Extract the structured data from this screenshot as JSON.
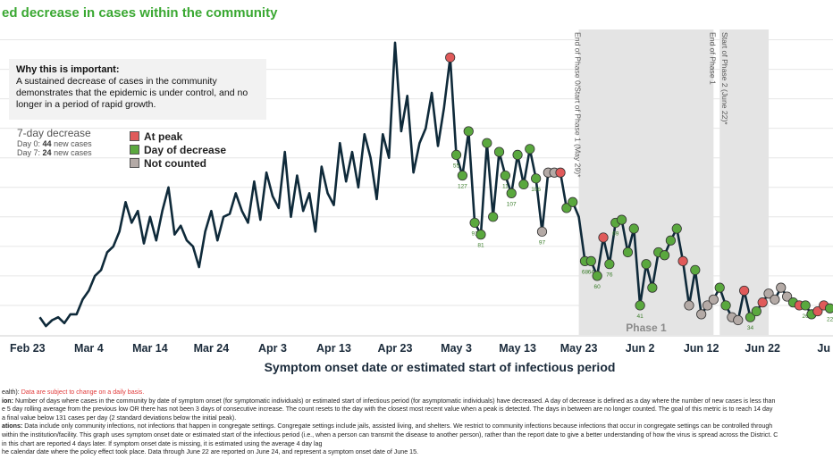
{
  "title": "ed decrease in cases within the community",
  "why": {
    "heading": "Why this is important:",
    "body": "A sustained decrease of cases in the community demonstrates that the epidemic is under control, and no longer in a period of rapid growth."
  },
  "seven_day": {
    "title": "7-day decrease",
    "day0_label": "Day 0:",
    "day0_value": "44",
    "day0_suffix": "new cases",
    "day7_label": "Day 7:",
    "day7_value": "24",
    "day7_suffix": "new cases"
  },
  "colors": {
    "line": "#0f2a3a",
    "peak": "#e05a5a",
    "decrease": "#5aa83e",
    "not_counted": "#b4aaa6",
    "phase_band": "#e4e4e4"
  },
  "chart_data": {
    "type": "line",
    "xlabel": "Symptom onset date or estimated start of infectious period",
    "ylabel": "",
    "x_tick_labels": [
      "Feb 23",
      "Mar 4",
      "Mar 14",
      "Mar 24",
      "Apr 3",
      "Apr 13",
      "Apr 23",
      "May 3",
      "May 13",
      "May 23",
      "Jun 2",
      "Jun 12",
      "Jun 22",
      "Ju"
    ],
    "x_tick_days": [
      0,
      10,
      20,
      30,
      40,
      50,
      60,
      70,
      80,
      90,
      100,
      110,
      120,
      130
    ],
    "x_range_days": [
      -4.5,
      131.5
    ],
    "y_range": [
      0,
      105
    ],
    "grid": true,
    "legend": {
      "position": "left",
      "entries": [
        "At peak",
        "Day of decrease",
        "Not counted"
      ]
    },
    "phases": [
      {
        "label": "Phase 1",
        "start_day": 90,
        "end_day": 112
      },
      {
        "label": "",
        "start_day": 113,
        "end_day": 121
      }
    ],
    "phase_annotations": [
      {
        "text": "End of Phase 0/Start of Phase 1 (May 29)*",
        "day": 90
      },
      {
        "text": "End of Phase 1",
        "day": 112
      },
      {
        "text": "Start of Phase 2 (June 22)*",
        "day": 114
      }
    ],
    "series": [
      {
        "values": [
          [
            2,
            6
          ],
          [
            3,
            3
          ],
          [
            4,
            5
          ],
          [
            5,
            6
          ],
          [
            6,
            4
          ],
          [
            7,
            7
          ],
          [
            8,
            7
          ],
          [
            9,
            12
          ],
          [
            10,
            15
          ],
          [
            11,
            20
          ],
          [
            12,
            22
          ],
          [
            13,
            28
          ],
          [
            14,
            30
          ],
          [
            15,
            35
          ],
          [
            16,
            45
          ],
          [
            17,
            38
          ],
          [
            18,
            42
          ],
          [
            19,
            31
          ],
          [
            20,
            40
          ],
          [
            21,
            32
          ],
          [
            22,
            42
          ],
          [
            23,
            50
          ],
          [
            24,
            34
          ],
          [
            25,
            37
          ],
          [
            26,
            32
          ],
          [
            27,
            30
          ],
          [
            28,
            23
          ],
          [
            29,
            35
          ],
          [
            30,
            42
          ],
          [
            31,
            32
          ],
          [
            32,
            40
          ],
          [
            33,
            41
          ],
          [
            34,
            48
          ],
          [
            35,
            42
          ],
          [
            36,
            38
          ],
          [
            37,
            52
          ],
          [
            38,
            39
          ],
          [
            39,
            55
          ],
          [
            40,
            47
          ],
          [
            41,
            43
          ],
          [
            42,
            62
          ],
          [
            43,
            40
          ],
          [
            44,
            54
          ],
          [
            45,
            42
          ],
          [
            46,
            48
          ],
          [
            47,
            35
          ],
          [
            48,
            57
          ],
          [
            49,
            48
          ],
          [
            50,
            44
          ],
          [
            51,
            65
          ],
          [
            52,
            52
          ],
          [
            53,
            62
          ],
          [
            54,
            50
          ],
          [
            55,
            68
          ],
          [
            56,
            60
          ],
          [
            57,
            46
          ],
          [
            58,
            68
          ],
          [
            59,
            60
          ],
          [
            60,
            99
          ],
          [
            61,
            69
          ],
          [
            62,
            81
          ],
          [
            63,
            55
          ],
          [
            64,
            65
          ],
          [
            65,
            70
          ],
          [
            66,
            82
          ],
          [
            67,
            64
          ],
          [
            68,
            77
          ],
          [
            69,
            94
          ],
          [
            70,
            61
          ],
          [
            71,
            54
          ],
          [
            72,
            69
          ],
          [
            73,
            38
          ],
          [
            74,
            34
          ],
          [
            75,
            65
          ],
          [
            76,
            40
          ],
          [
            77,
            62
          ],
          [
            78,
            54
          ],
          [
            79,
            48
          ],
          [
            80,
            61
          ],
          [
            81,
            51
          ],
          [
            82,
            63
          ],
          [
            83,
            53
          ],
          [
            84,
            35
          ],
          [
            85,
            55
          ],
          [
            86,
            55
          ],
          [
            87,
            55
          ],
          [
            88,
            43
          ],
          [
            89,
            45
          ],
          [
            90,
            40
          ],
          [
            91,
            25
          ],
          [
            92,
            25
          ],
          [
            93,
            20
          ],
          [
            94,
            33
          ],
          [
            95,
            24
          ],
          [
            96,
            38
          ],
          [
            97,
            39
          ],
          [
            98,
            28
          ],
          [
            99,
            36
          ],
          [
            100,
            10
          ],
          [
            101,
            24
          ],
          [
            102,
            16
          ],
          [
            103,
            28
          ],
          [
            104,
            27
          ],
          [
            105,
            32
          ],
          [
            106,
            36
          ],
          [
            107,
            25
          ],
          [
            108,
            10
          ],
          [
            109,
            22
          ],
          [
            110,
            7
          ],
          [
            111,
            10
          ],
          [
            112,
            12
          ],
          [
            113,
            16
          ],
          [
            114,
            10
          ],
          [
            115,
            6
          ],
          [
            116,
            5
          ],
          [
            117,
            15
          ],
          [
            118,
            6
          ],
          [
            119,
            8
          ],
          [
            120,
            11
          ],
          [
            121,
            14
          ],
          [
            122,
            12
          ],
          [
            123,
            16
          ],
          [
            124,
            13
          ],
          [
            125,
            11
          ],
          [
            126,
            10
          ],
          [
            127,
            10
          ],
          [
            128,
            7
          ],
          [
            129,
            8
          ],
          [
            130,
            10
          ],
          [
            131,
            9
          ]
        ]
      }
    ],
    "markers": [
      {
        "day": 69,
        "value": 94,
        "status": "peak",
        "label": ""
      },
      {
        "day": 70,
        "value": 61,
        "status": "decrease",
        "label": "55"
      },
      {
        "day": 71,
        "value": 54,
        "status": "decrease",
        "label": "127"
      },
      {
        "day": 72,
        "value": 69,
        "status": "decrease",
        "label": ""
      },
      {
        "day": 73,
        "value": 38,
        "status": "decrease",
        "label": "91"
      },
      {
        "day": 74,
        "value": 34,
        "status": "decrease",
        "label": "81"
      },
      {
        "day": 75,
        "value": 65,
        "status": "decrease",
        "label": ""
      },
      {
        "day": 76,
        "value": 40,
        "status": "decrease",
        "label": ""
      },
      {
        "day": 77,
        "value": 62,
        "status": "decrease",
        "label": ""
      },
      {
        "day": 78,
        "value": 54,
        "status": "decrease",
        "label": "11"
      },
      {
        "day": 79,
        "value": 48,
        "status": "decrease",
        "label": "107"
      },
      {
        "day": 80,
        "value": 61,
        "status": "decrease",
        "label": ""
      },
      {
        "day": 81,
        "value": 51,
        "status": "decrease",
        "label": ""
      },
      {
        "day": 82,
        "value": 63,
        "status": "decrease",
        "label": ""
      },
      {
        "day": 83,
        "value": 53,
        "status": "decrease",
        "label": "106"
      },
      {
        "day": 84,
        "value": 35,
        "status": "not_counted",
        "label": "97"
      },
      {
        "day": 85,
        "value": 55,
        "status": "not_counted",
        "label": ""
      },
      {
        "day": 86,
        "value": 55,
        "status": "not_counted",
        "label": ""
      },
      {
        "day": 87,
        "value": 55,
        "status": "peak",
        "label": ""
      },
      {
        "day": 88,
        "value": 43,
        "status": "decrease",
        "label": ""
      },
      {
        "day": 89,
        "value": 45,
        "status": "decrease",
        "label": ""
      },
      {
        "day": 91,
        "value": 25,
        "status": "decrease",
        "label": "68"
      },
      {
        "day": 92,
        "value": 25,
        "status": "decrease",
        "label": "64"
      },
      {
        "day": 93,
        "value": 20,
        "status": "decrease",
        "label": "60"
      },
      {
        "day": 94,
        "value": 33,
        "status": "peak",
        "label": ""
      },
      {
        "day": 95,
        "value": 24,
        "status": "decrease",
        "label": "76"
      },
      {
        "day": 96,
        "value": 38,
        "status": "decrease",
        "label": "69"
      },
      {
        "day": 97,
        "value": 39,
        "status": "decrease",
        "label": ""
      },
      {
        "day": 98,
        "value": 28,
        "status": "decrease",
        "label": ""
      },
      {
        "day": 99,
        "value": 36,
        "status": "decrease",
        "label": ""
      },
      {
        "day": 100,
        "value": 10,
        "status": "decrease",
        "label": "41"
      },
      {
        "day": 101,
        "value": 24,
        "status": "decrease",
        "label": ""
      },
      {
        "day": 102,
        "value": 16,
        "status": "decrease",
        "label": ""
      },
      {
        "day": 103,
        "value": 28,
        "status": "decrease",
        "label": ""
      },
      {
        "day": 104,
        "value": 27,
        "status": "decrease",
        "label": ""
      },
      {
        "day": 105,
        "value": 32,
        "status": "decrease",
        "label": ""
      },
      {
        "day": 106,
        "value": 36,
        "status": "decrease",
        "label": ""
      },
      {
        "day": 107,
        "value": 25,
        "status": "peak",
        "label": ""
      },
      {
        "day": 108,
        "value": 10,
        "status": "not_counted",
        "label": ""
      },
      {
        "day": 109,
        "value": 22,
        "status": "decrease",
        "label": ""
      },
      {
        "day": 110,
        "value": 7,
        "status": "not_counted",
        "label": ""
      },
      {
        "day": 111,
        "value": 10,
        "status": "not_counted",
        "label": ""
      },
      {
        "day": 112,
        "value": 12,
        "status": "not_counted",
        "label": ""
      },
      {
        "day": 113,
        "value": 16,
        "status": "decrease",
        "label": ""
      },
      {
        "day": 114,
        "value": 10,
        "status": "decrease",
        "label": ""
      },
      {
        "day": 115,
        "value": 6,
        "status": "not_counted",
        "label": ""
      },
      {
        "day": 116,
        "value": 5,
        "status": "not_counted",
        "label": ""
      },
      {
        "day": 117,
        "value": 15,
        "status": "peak",
        "label": ""
      },
      {
        "day": 118,
        "value": 6,
        "status": "decrease",
        "label": "34"
      },
      {
        "day": 119,
        "value": 8,
        "status": "decrease",
        "label": ""
      },
      {
        "day": 120,
        "value": 11,
        "status": "peak",
        "label": ""
      },
      {
        "day": 121,
        "value": 14,
        "status": "not_counted",
        "label": ""
      },
      {
        "day": 122,
        "value": 12,
        "status": "not_counted",
        "label": ""
      },
      {
        "day": 123,
        "value": 16,
        "status": "not_counted",
        "label": ""
      },
      {
        "day": 124,
        "value": 13,
        "status": "not_counted",
        "label": ""
      },
      {
        "day": 125,
        "value": 11,
        "status": "decrease",
        "label": ""
      },
      {
        "day": 126,
        "value": 10,
        "status": "peak",
        "label": ""
      },
      {
        "day": 127,
        "value": 10,
        "status": "decrease",
        "label": "26"
      },
      {
        "day": 128,
        "value": 7,
        "status": "decrease",
        "label": ""
      },
      {
        "day": 129,
        "value": 8,
        "status": "peak",
        "label": ""
      },
      {
        "day": 130,
        "value": 10,
        "status": "peak",
        "label": ""
      },
      {
        "day": 131,
        "value": 9,
        "status": "decrease",
        "label": "22"
      }
    ]
  },
  "footnotes": [
    {
      "prefix": "ealth): ",
      "red": "Data are subject to change on a daily basis.",
      "rest": ""
    },
    {
      "prefix": "ion:",
      "red": "",
      "rest": " Number of days where cases in the community by date of symptom onset (for symptomatic individuals) or estimated start of infectious period (for asymptomatic individuals) have decreased. A day of decrease is defined as a day where the number of new cases is less than"
    },
    {
      "prefix": "",
      "red": "",
      "rest": "e 5 day rolling average from the previous low OR there has not been 3 days of consecutive increase. The count resets to the day with the closest most recent value when a peak is detected. The days in between are no longer counted. The goal of this metric is to reach 14 day"
    },
    {
      "prefix": "",
      "red": "",
      "rest": "a final value below 131 cases per day (2 standard deviations below the initial peak)."
    },
    {
      "prefix": "ations:",
      "red": "",
      "rest": " Data include only community infections, not infections that happen in congregate settings. Congregate settings include jails, assisted living, and shelters. We restrict to community infections because infections that occur in congregate settings can be controlled through"
    },
    {
      "prefix": "",
      "red": "",
      "rest": "within the institution/facility. This graph uses symptom onset date or estimated start of the infectious period (i.e., when a person can transmit the disease to another person), rather than the report date to give a better understanding of how the virus is spread across the District. C"
    },
    {
      "prefix": "",
      "red": "",
      "rest": "in this chart are reported 4 days later. If symptom onset date is missing, it is estimated using the average 4 day lag"
    },
    {
      "prefix": "",
      "red": "",
      "rest": "he calendar date where the policy effect took place. Data through June 22 are reported on June 24, and represent a symptom onset date of June 15."
    }
  ]
}
